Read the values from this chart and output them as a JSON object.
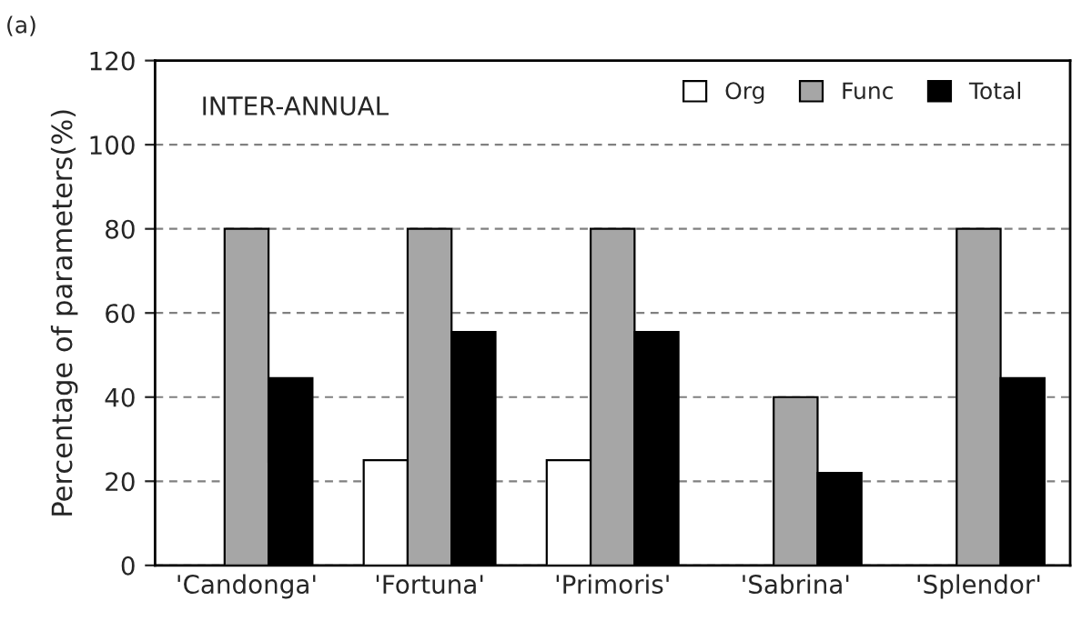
{
  "chart_data": {
    "type": "bar",
    "categories": [
      "'Candonga'",
      "'Fortuna'",
      "'Primoris'",
      "'Sabrina'",
      "'Splendor'"
    ],
    "series": [
      {
        "name": "Org",
        "color": "#ffffff",
        "values": [
          0,
          25,
          25,
          0,
          0
        ]
      },
      {
        "name": "Func",
        "color": "#a6a6a6",
        "values": [
          80,
          80,
          80,
          40,
          80
        ]
      },
      {
        "name": "Total",
        "color": "#000000",
        "values": [
          44.5,
          55.5,
          55.5,
          22,
          44.5
        ]
      }
    ],
    "ylabel": "Percentage of parameters(%)",
    "ylim": [
      0,
      120
    ],
    "yticks": [
      0,
      20,
      40,
      60,
      80,
      100,
      120
    ],
    "grid": "y",
    "legend": "top right",
    "annotations": [
      "(a)",
      "INTER-ANNUAL"
    ]
  }
}
